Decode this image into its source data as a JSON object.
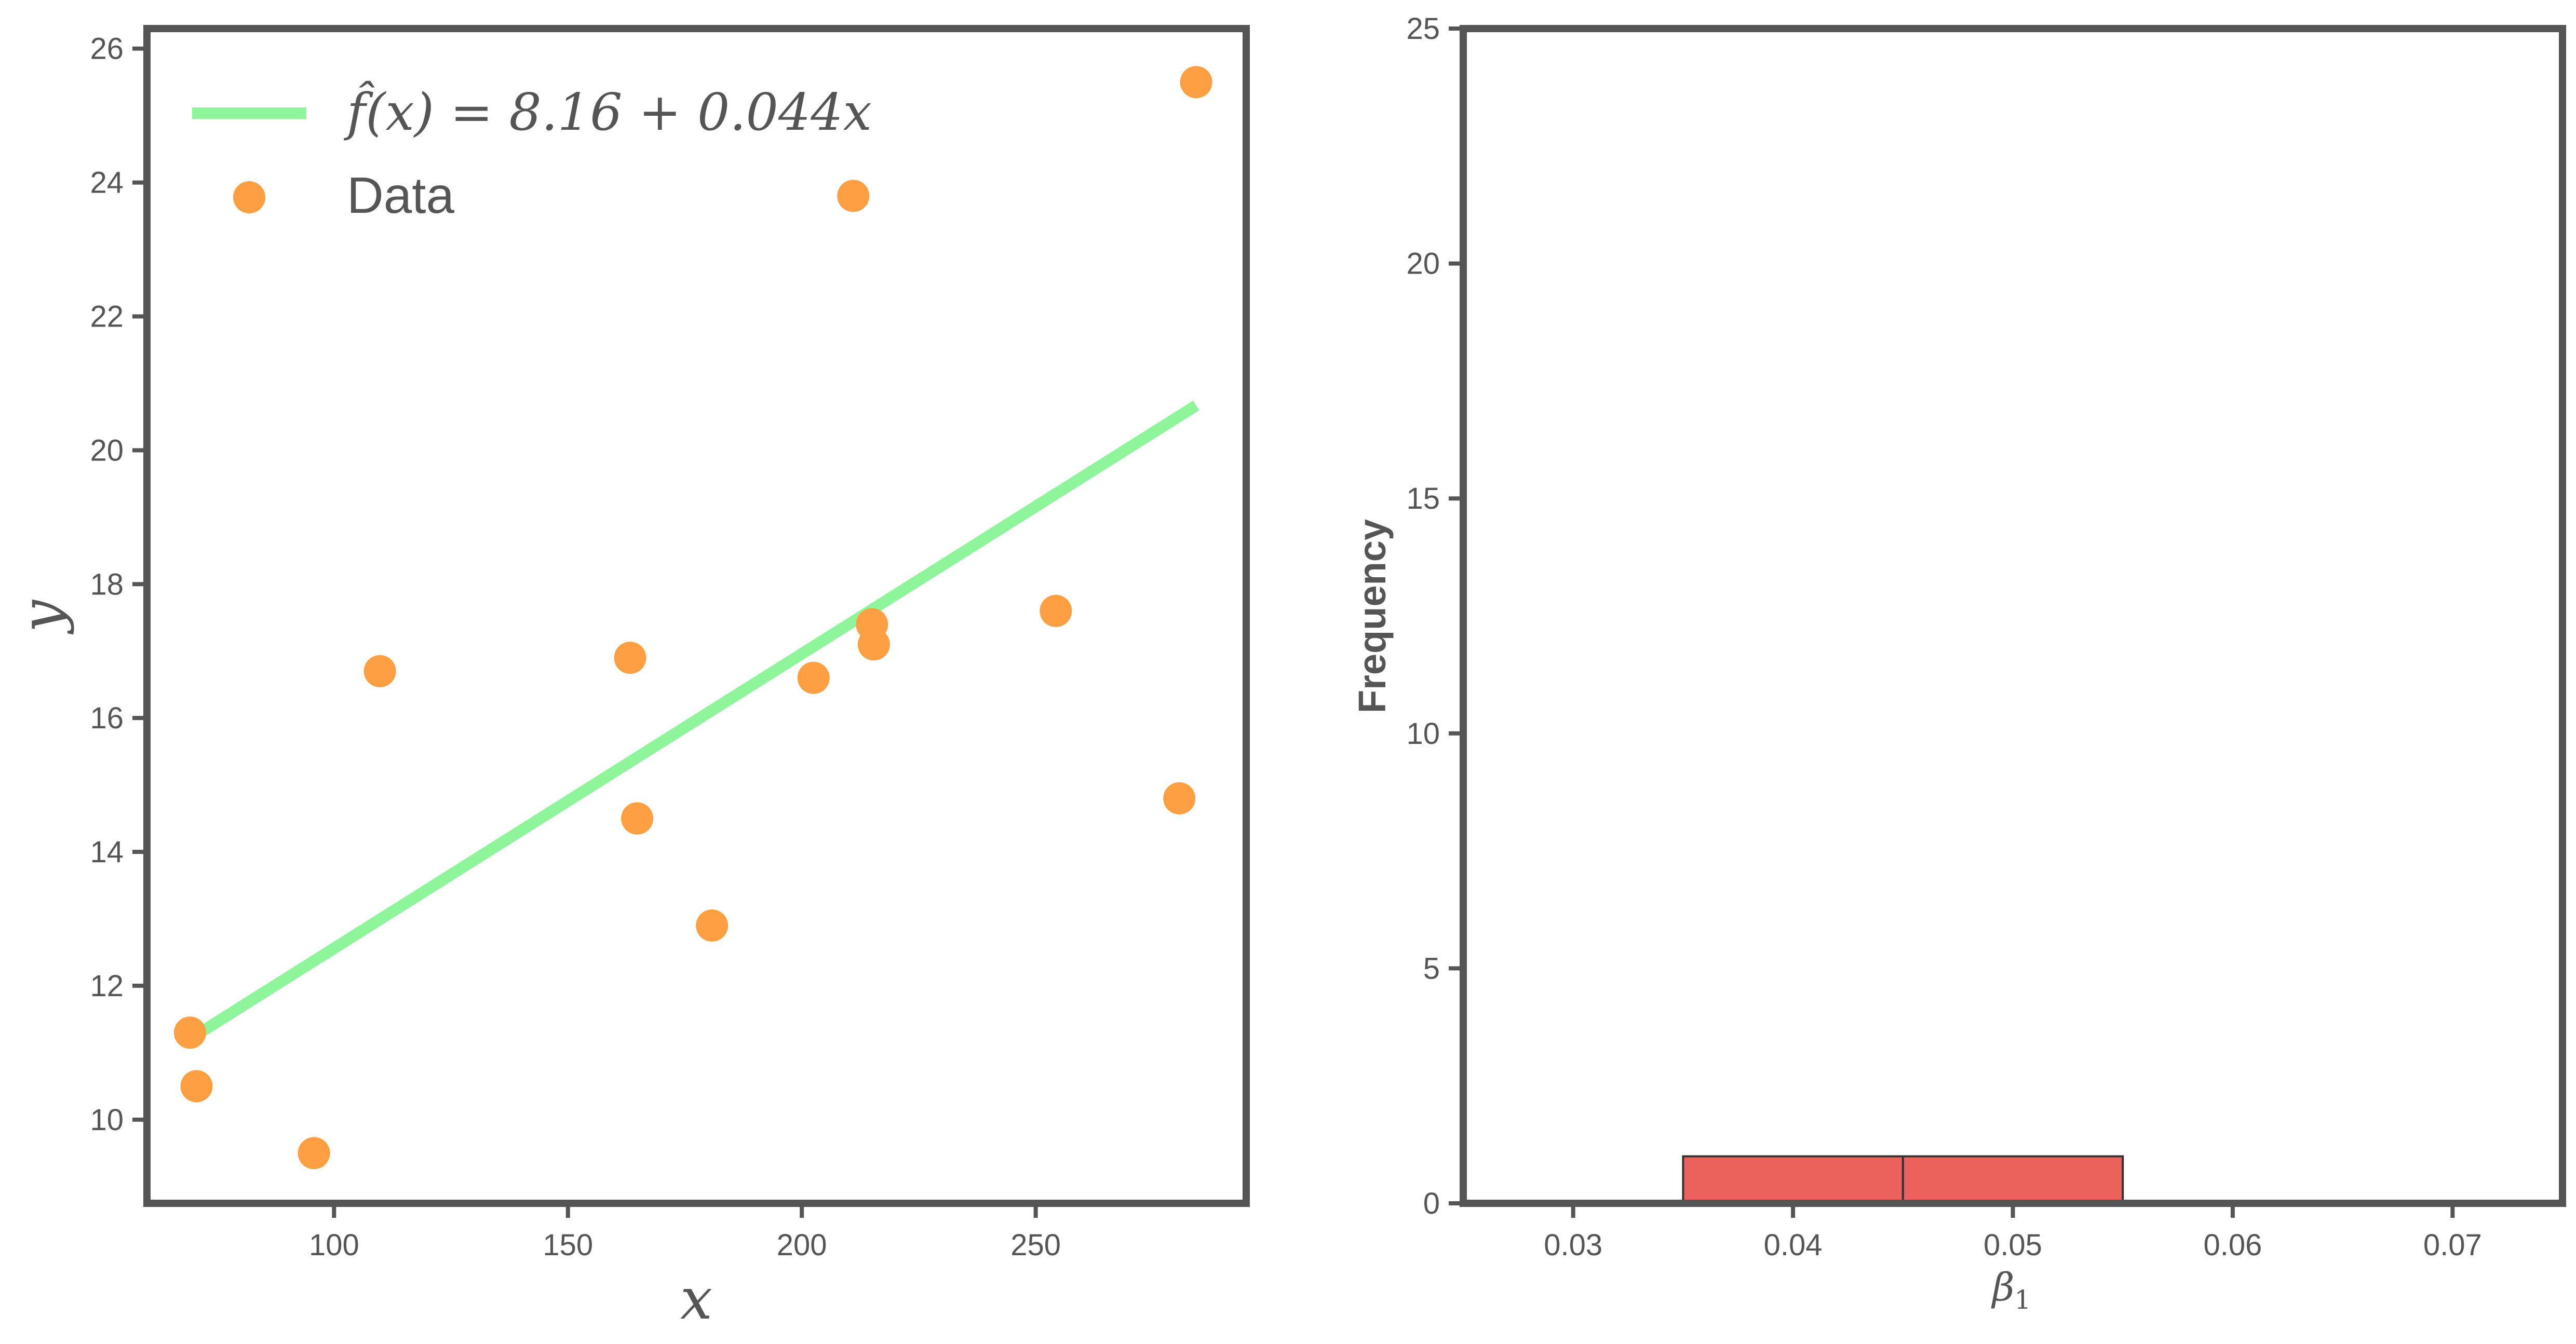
{
  "chart_data": [
    {
      "type": "scatter",
      "xlabel": "x",
      "ylabel": "y",
      "xlim": [
        60,
        295
      ],
      "ylim": [
        8.75,
        26.3
      ],
      "xticks": [
        100,
        150,
        200,
        250
      ],
      "yticks": [
        10,
        12,
        14,
        16,
        18,
        20,
        22,
        24,
        26
      ],
      "grid": false,
      "legend_position": "top-left",
      "series": [
        {
          "name": "Data",
          "kind": "scatter",
          "color": "#ff9f43",
          "points": [
            {
              "x": 69.2,
              "y": 11.3
            },
            {
              "x": 70.6,
              "y": 10.5
            },
            {
              "x": 95.7,
              "y": 9.5
            },
            {
              "x": 109.8,
              "y": 16.7
            },
            {
              "x": 163.3,
              "y": 16.9
            },
            {
              "x": 164.8,
              "y": 14.5
            },
            {
              "x": 180.8,
              "y": 12.9
            },
            {
              "x": 202.5,
              "y": 16.6
            },
            {
              "x": 211.0,
              "y": 23.8
            },
            {
              "x": 215.0,
              "y": 17.4
            },
            {
              "x": 215.4,
              "y": 17.1
            },
            {
              "x": 254.3,
              "y": 17.6
            },
            {
              "x": 280.7,
              "y": 14.8
            },
            {
              "x": 284.3,
              "y": 25.5
            }
          ]
        },
        {
          "name_prefix": "f̂",
          "name_suffix": "(x) = 8.16 + 0.044x",
          "kind": "line",
          "color": "#8ef59b",
          "intercept": 8.16,
          "slope": 0.044,
          "x_range": [
            69.2,
            284.3
          ]
        }
      ]
    },
    {
      "type": "bar",
      "subtype": "histogram",
      "xlabel_symbol": "β",
      "xlabel_sub": "1",
      "ylabel": "Frequency",
      "xlim": [
        0.025,
        0.075
      ],
      "ylim": [
        0,
        25
      ],
      "xticks": [
        "0.03",
        "0.04",
        "0.05",
        "0.06",
        "0.07"
      ],
      "xtick_values": [
        0.03,
        0.04,
        0.05,
        0.06,
        0.07
      ],
      "yticks": [
        0,
        5,
        10,
        15,
        20,
        25
      ],
      "grid": false,
      "color": "#eb625d",
      "bins": [
        {
          "start": 0.035,
          "end": 0.045,
          "count": 1
        },
        {
          "start": 0.045,
          "end": 0.055,
          "count": 1
        }
      ]
    }
  ]
}
